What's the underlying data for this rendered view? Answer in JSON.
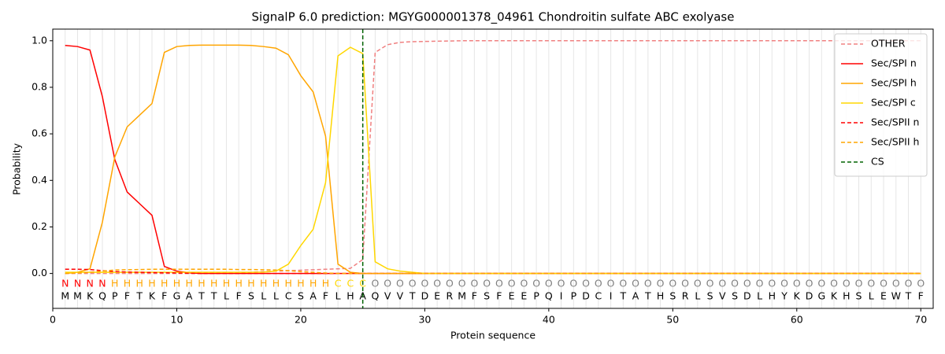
{
  "chart_data": {
    "type": "line",
    "title": "SignalP 6.0 prediction: MGYG000001378_04961 Chondroitin sulfate ABC exolyase",
    "x_label": "Protein sequence",
    "y_label": "Probability",
    "xlim": [
      0,
      71
    ],
    "ylim": [
      -0.15,
      1.05
    ],
    "xticks": [
      0,
      10,
      20,
      30,
      40,
      50,
      60,
      70
    ],
    "yticks": [
      {
        "value": 0,
        "label": "0.0"
      },
      {
        "value": 0.2,
        "label": "0.2"
      },
      {
        "value": 0.4,
        "label": "0.4"
      },
      {
        "value": 0.6,
        "label": "0.6"
      },
      {
        "value": 0.8,
        "label": "0.8"
      },
      {
        "value": 1,
        "label": "1.0"
      }
    ],
    "grid": true,
    "legend": "upper right",
    "x": [
      1,
      2,
      3,
      4,
      5,
      6,
      7,
      8,
      9,
      10,
      11,
      12,
      13,
      14,
      15,
      16,
      17,
      18,
      19,
      20,
      21,
      22,
      23,
      24,
      25,
      26,
      27,
      28,
      29,
      30,
      31,
      32,
      33,
      34,
      35,
      36,
      37,
      38,
      39,
      40,
      41,
      42,
      43,
      44,
      45,
      46,
      47,
      48,
      49,
      50,
      51,
      52,
      53,
      54,
      55,
      56,
      57,
      58,
      59,
      60,
      61,
      62,
      63,
      64,
      65,
      66,
      67,
      68,
      69,
      70
    ],
    "sequence": [
      "M",
      "M",
      "K",
      "Q",
      "P",
      "F",
      "T",
      "K",
      "F",
      "G",
      "A",
      "T",
      "T",
      "L",
      "F",
      "S",
      "L",
      "L",
      "C",
      "S",
      "A",
      "F",
      "L",
      "H",
      "A",
      "Q",
      "V",
      "V",
      "T",
      "D",
      "E",
      "R",
      "M",
      "F",
      "S",
      "F",
      "E",
      "E",
      "P",
      "Q",
      "I",
      "P",
      "D",
      "C",
      "I",
      "T",
      "A",
      "T",
      "H",
      "S",
      "R",
      "L",
      "S",
      "V",
      "S",
      "D",
      "L",
      "H",
      "Y",
      "K",
      "D",
      "G",
      "K",
      "H",
      "S",
      "L",
      "E",
      "W",
      "T",
      "F"
    ],
    "annotation": [
      "N",
      "N",
      "N",
      "N",
      "H",
      "H",
      "H",
      "H",
      "H",
      "H",
      "H",
      "H",
      "H",
      "H",
      "H",
      "H",
      "H",
      "H",
      "H",
      "H",
      "H",
      "H",
      "C",
      "C",
      "C",
      "O",
      "O",
      "O",
      "O",
      "O",
      "O",
      "O",
      "O",
      "O",
      "O",
      "O",
      "O",
      "O",
      "O",
      "O",
      "O",
      "O",
      "O",
      "O",
      "O",
      "O",
      "O",
      "O",
      "O",
      "O",
      "O",
      "O",
      "O",
      "O",
      "O",
      "O",
      "O",
      "O",
      "O",
      "O",
      "O",
      "O",
      "O",
      "O",
      "O",
      "O",
      "O",
      "O",
      "O",
      "O"
    ],
    "annotation_colors": {
      "N": "#ff0000",
      "H": "#ffa500",
      "C": "#ffd700",
      "O": "#808080"
    },
    "series": [
      {
        "name": "OTHER",
        "color": "#f08080",
        "dash": true,
        "values": [
          0,
          0,
          0,
          0,
          0,
          0,
          0,
          0,
          0,
          0,
          0,
          0,
          0,
          0,
          0,
          0.005,
          0.008,
          0.01,
          0.012,
          0.014,
          0.016,
          0.018,
          0.02,
          0.022,
          0.06,
          0.95,
          0.983,
          0.993,
          0.996,
          0.997,
          0.998,
          0.999,
          1,
          1,
          1,
          1,
          1,
          1,
          1,
          1,
          1,
          1,
          1,
          1,
          1,
          1,
          1,
          1,
          1,
          1,
          1,
          1,
          1,
          1,
          1,
          1,
          1,
          1,
          1,
          1,
          1,
          1,
          1,
          1,
          1,
          1,
          1,
          1,
          1,
          1
        ]
      },
      {
        "name": "Sec/SPI n",
        "color": "#ff0000",
        "dash": false,
        "values": [
          0.98,
          0.975,
          0.96,
          0.76,
          0.49,
          0.35,
          0.3,
          0.25,
          0.03,
          0.01,
          0.003,
          0,
          0,
          0,
          0,
          0,
          0,
          0,
          0,
          0,
          0,
          0,
          0,
          0,
          0,
          0,
          0,
          0,
          0,
          0,
          0,
          0,
          0,
          0,
          0,
          0,
          0,
          0,
          0,
          0,
          0,
          0,
          0,
          0,
          0,
          0,
          0,
          0,
          0,
          0,
          0,
          0,
          0,
          0,
          0,
          0,
          0,
          0,
          0,
          0,
          0,
          0,
          0,
          0,
          0,
          0,
          0,
          0,
          0,
          0
        ]
      },
      {
        "name": "Sec/SPI h",
        "color": "#ffa500",
        "dash": false,
        "values": [
          0,
          0.005,
          0.02,
          0.22,
          0.5,
          0.63,
          0.68,
          0.73,
          0.95,
          0.975,
          0.98,
          0.981,
          0.981,
          0.981,
          0.981,
          0.98,
          0.975,
          0.968,
          0.94,
          0.85,
          0.78,
          0.59,
          0.04,
          0.005,
          0,
          0,
          0,
          0,
          0,
          0,
          0,
          0,
          0,
          0,
          0,
          0,
          0,
          0,
          0,
          0,
          0,
          0,
          0,
          0,
          0,
          0,
          0,
          0,
          0,
          0,
          0,
          0,
          0,
          0,
          0,
          0,
          0,
          0,
          0,
          0,
          0,
          0,
          0,
          0,
          0,
          0,
          0,
          0,
          0,
          0
        ]
      },
      {
        "name": "Sec/SPI c",
        "color": "#ffd700",
        "dash": false,
        "values": [
          0.005,
          0.005,
          0.005,
          0.005,
          0.005,
          0.005,
          0.005,
          0.005,
          0.005,
          0.005,
          0.005,
          0.005,
          0.005,
          0.005,
          0.005,
          0.005,
          0.006,
          0.01,
          0.04,
          0.12,
          0.19,
          0.39,
          0.935,
          0.972,
          0.945,
          0.05,
          0.02,
          0.01,
          0.005,
          0,
          0,
          0,
          0,
          0,
          0,
          0,
          0,
          0,
          0,
          0,
          0,
          0,
          0,
          0,
          0,
          0,
          0,
          0,
          0,
          0,
          0,
          0,
          0,
          0,
          0,
          0,
          0,
          0,
          0,
          0,
          0,
          0,
          0,
          0,
          0,
          0,
          0,
          0,
          0,
          0
        ]
      },
      {
        "name": "Sec/SPII n",
        "color": "#ff0000",
        "dash": true,
        "values": [
          0.018,
          0.018,
          0.017,
          0.012,
          0.008,
          0.006,
          0.005,
          0.004,
          0.003,
          0.002,
          0.001,
          0,
          0,
          0,
          0,
          0,
          0,
          0,
          0,
          0,
          0,
          0,
          0,
          0,
          0,
          0,
          0,
          0,
          0,
          0,
          0,
          0,
          0,
          0,
          0,
          0,
          0,
          0,
          0,
          0,
          0,
          0,
          0,
          0,
          0,
          0,
          0,
          0,
          0,
          0,
          0,
          0,
          0,
          0,
          0,
          0,
          0,
          0,
          0,
          0,
          0,
          0,
          0,
          0,
          0,
          0,
          0,
          0,
          0,
          0
        ]
      },
      {
        "name": "Sec/SPII h",
        "color": "#ffa500",
        "dash": true,
        "values": [
          0,
          0.002,
          0.005,
          0.01,
          0.015,
          0.016,
          0.017,
          0.018,
          0.018,
          0.018,
          0.018,
          0.018,
          0.018,
          0.018,
          0.017,
          0.017,
          0.016,
          0.015,
          0.012,
          0.008,
          0.005,
          0.002,
          0,
          0,
          0,
          0,
          0,
          0,
          0,
          0,
          0,
          0,
          0,
          0,
          0,
          0,
          0,
          0,
          0,
          0,
          0,
          0,
          0,
          0,
          0,
          0,
          0,
          0,
          0,
          0,
          0,
          0,
          0,
          0,
          0,
          0,
          0,
          0,
          0,
          0,
          0,
          0,
          0,
          0,
          0,
          0,
          0,
          0,
          0,
          0
        ]
      }
    ],
    "cs": {
      "name": "CS",
      "x": 25,
      "color": "#006400"
    }
  }
}
